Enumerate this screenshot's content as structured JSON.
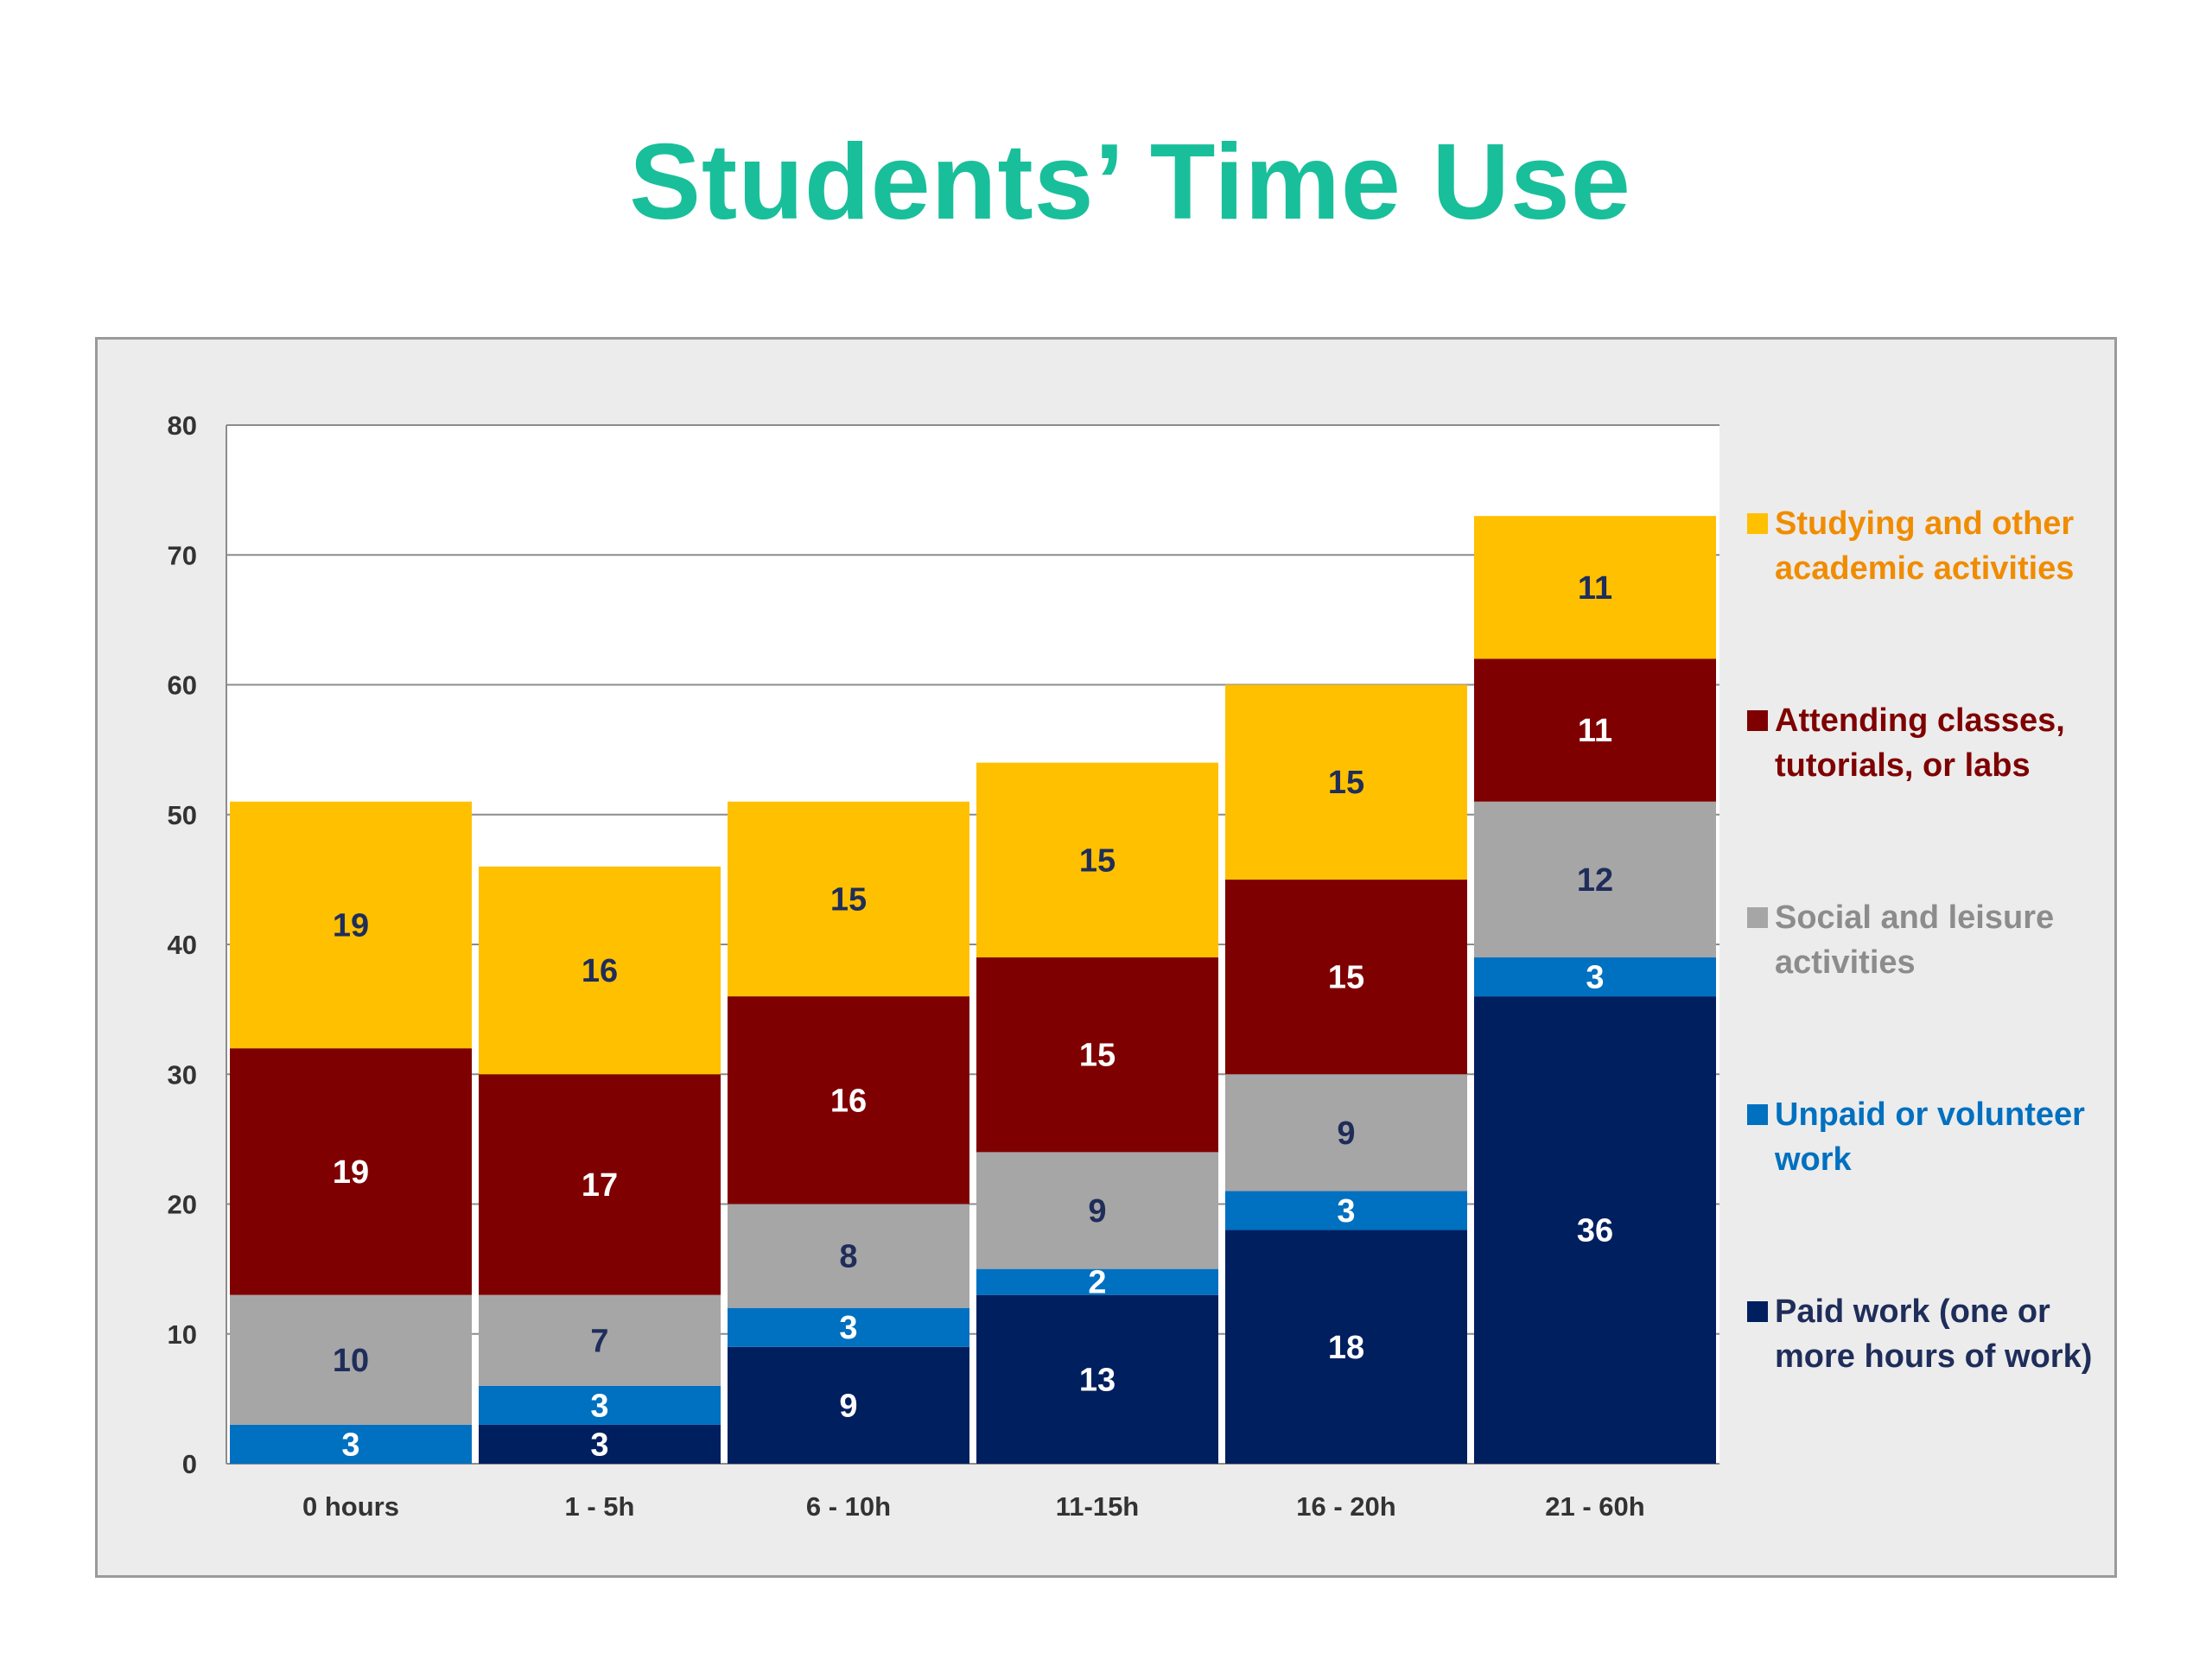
{
  "title": "Students’ Time Use",
  "chart_data": {
    "type": "bar",
    "stacked": true,
    "categories": [
      "0 hours",
      "1 - 5h",
      "6 - 10h",
      "11-15h",
      "16 - 20h",
      "21 - 60h"
    ],
    "series": [
      {
        "name": "Paid work (one or more hours of work)",
        "color": "#001f5f",
        "label_color": "#ffffff",
        "values": [
          0,
          3,
          9,
          13,
          18,
          36
        ]
      },
      {
        "name": "Unpaid or volunteer work",
        "color": "#0070c0",
        "label_color": "#ffffff",
        "values": [
          3,
          3,
          3,
          2,
          3,
          3
        ]
      },
      {
        "name": "Social and leisure activities",
        "color": "#a6a6a6",
        "label_color": "#1f2d5a",
        "values": [
          10,
          7,
          8,
          9,
          9,
          12
        ]
      },
      {
        "name": "Attending classes, tutorials, or labs",
        "color": "#7f0000",
        "label_color": "#ffffff",
        "values": [
          19,
          17,
          16,
          15,
          15,
          11
        ]
      },
      {
        "name": "Studying and other academic activities",
        "color": "#ffc000",
        "label_color": "#1f2d5a",
        "values": [
          19,
          16,
          15,
          15,
          15,
          11
        ]
      }
    ],
    "legend_order": [
      4,
      3,
      2,
      1,
      0
    ],
    "legend_text_colors": [
      "#f08c00",
      "#7f0000",
      "#8c8c8c",
      "#0070c0",
      "#1f2d5a"
    ],
    "yticks": [
      "0",
      "10",
      "20",
      "30",
      "40",
      "50",
      "60",
      "70",
      "80"
    ],
    "ylim": [
      0,
      80
    ],
    "grid": true,
    "legend_position": "right"
  }
}
